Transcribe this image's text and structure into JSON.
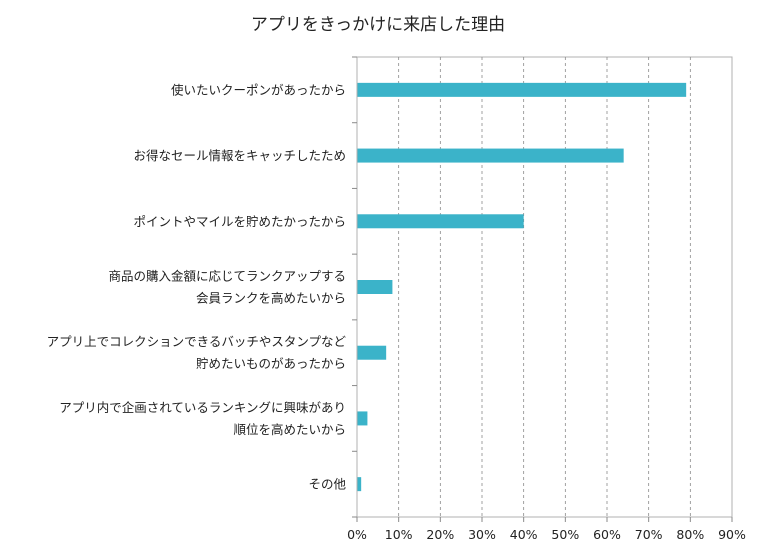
{
  "chart_data": {
    "type": "bar",
    "orientation": "horizontal",
    "title": "アプリをきっかけに来店した理由",
    "categories": [
      [
        "使いたいクーポンがあったから"
      ],
      [
        "お得なセール情報をキャッチしたため"
      ],
      [
        "ポイントやマイルを貯めたかったから"
      ],
      [
        "商品の購入金額に応じてランクアップする",
        "会員ランクを高めたいから"
      ],
      [
        "アプリ上でコレクションできるバッチやスタンプなど",
        "貯めたいものがあったから"
      ],
      [
        "アプリ内で企画されているランキングに興味があり",
        "順位を高めたいから"
      ],
      [
        "その他"
      ]
    ],
    "values": [
      79,
      64,
      40,
      8.5,
      7,
      2.5,
      1
    ],
    "xlim": [
      0,
      90
    ],
    "xticks": [
      0,
      10,
      20,
      30,
      40,
      50,
      60,
      70,
      80,
      90
    ],
    "tick_suffix": "%",
    "bar_color": "#3bb3c9",
    "grid": "vertical-dashed",
    "legend": "none"
  }
}
